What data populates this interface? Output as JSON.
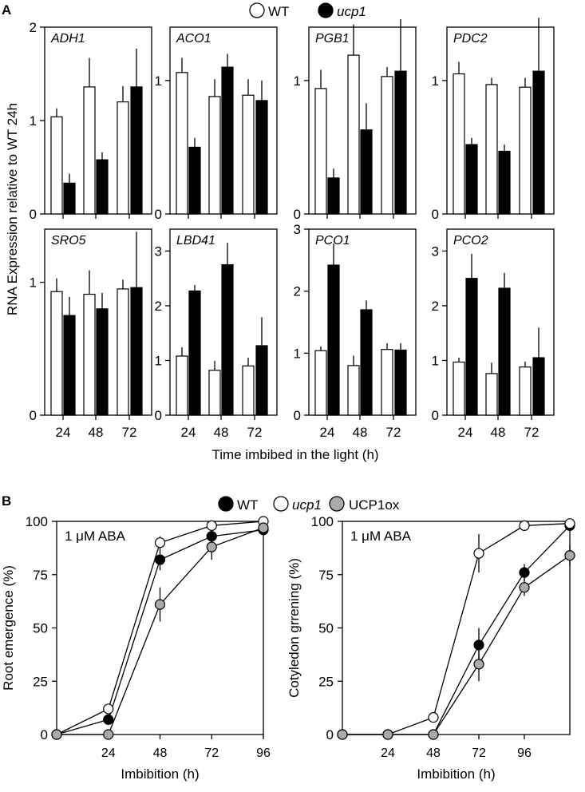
{
  "panel_labels": {
    "a": "A",
    "b": "B"
  },
  "legend_a": {
    "wt": "WT",
    "ucp1": "ucp1"
  },
  "legend_b": {
    "wt": "WT",
    "ucp1": "ucp1",
    "ucp1ox": "UCP1ox"
  },
  "shared_labels": {
    "a_ylabel": "RNA Expression relative to WT 24h",
    "a_xlabel": "Time imbibed in the light (h)",
    "a_xticks": [
      "24",
      "48",
      "72"
    ]
  },
  "colors": {
    "wt_bar": "#ffffff",
    "ucp1_bar": "#000000",
    "ucp1ox_point": "#aaaaaa"
  },
  "chart_data": [
    {
      "type": "bar",
      "gene": "ADH1",
      "categories": [
        "24",
        "48",
        "72"
      ],
      "ylim": [
        0,
        2
      ],
      "yticks": [
        0,
        1,
        2
      ],
      "series": [
        {
          "name": "WT",
          "values": [
            1.04,
            1.36,
            1.2
          ],
          "errors": [
            0.09,
            0.31,
            0.17
          ]
        },
        {
          "name": "ucp1",
          "values": [
            0.33,
            0.58,
            1.36
          ],
          "errors": [
            0.1,
            0.08,
            0.41
          ]
        }
      ]
    },
    {
      "type": "bar",
      "gene": "ACO1",
      "categories": [
        "24",
        "48",
        "72"
      ],
      "ylim": [
        0,
        1.4
      ],
      "yticks": [
        0,
        1
      ],
      "series": [
        {
          "name": "WT",
          "values": [
            1.06,
            0.88,
            0.89
          ],
          "errors": [
            0.11,
            0.13,
            0.12
          ]
        },
        {
          "name": "ucp1",
          "values": [
            0.5,
            1.1,
            0.85
          ],
          "errors": [
            0.07,
            0.1,
            0.15
          ]
        }
      ]
    },
    {
      "type": "bar",
      "gene": "PGB1",
      "categories": [
        "24",
        "48",
        "72"
      ],
      "ylim": [
        0,
        1.4
      ],
      "yticks": [
        0,
        1
      ],
      "series": [
        {
          "name": "WT",
          "values": [
            0.94,
            1.19,
            1.03
          ],
          "errors": [
            0.14,
            0.23,
            0.07
          ]
        },
        {
          "name": "ucp1",
          "values": [
            0.27,
            0.63,
            1.07
          ],
          "errors": [
            0.07,
            0.2,
            0.39
          ]
        }
      ]
    },
    {
      "type": "bar",
      "gene": "PDC2",
      "categories": [
        "24",
        "48",
        "72"
      ],
      "ylim": [
        0,
        1.4
      ],
      "yticks": [
        0,
        1
      ],
      "series": [
        {
          "name": "WT",
          "values": [
            1.05,
            0.97,
            0.95
          ],
          "errors": [
            0.09,
            0.05,
            0.07
          ]
        },
        {
          "name": "ucp1",
          "values": [
            0.52,
            0.47,
            1.07
          ],
          "errors": [
            0.05,
            0.05,
            0.4
          ]
        }
      ]
    },
    {
      "type": "bar",
      "gene": "SRO5",
      "categories": [
        "24",
        "48",
        "72"
      ],
      "ylim": [
        0,
        1.4
      ],
      "yticks": [
        0,
        1
      ],
      "series": [
        {
          "name": "WT",
          "values": [
            0.93,
            0.91,
            0.95
          ],
          "errors": [
            0.1,
            0.18,
            0.07
          ]
        },
        {
          "name": "ucp1",
          "values": [
            0.75,
            0.8,
            0.96
          ],
          "errors": [
            0.14,
            0.12,
            0.42
          ]
        }
      ]
    },
    {
      "type": "bar",
      "gene": "LBD41",
      "categories": [
        "24",
        "48",
        "72"
      ],
      "ylim": [
        0,
        3.4
      ],
      "yticks": [
        0,
        1,
        2,
        3
      ],
      "series": [
        {
          "name": "WT",
          "values": [
            1.08,
            0.82,
            0.9
          ],
          "errors": [
            0.16,
            0.17,
            0.15
          ]
        },
        {
          "name": "ucp1",
          "values": [
            2.27,
            2.75,
            1.27
          ],
          "errors": [
            0.11,
            0.4,
            0.52
          ]
        }
      ]
    },
    {
      "type": "bar",
      "gene": "PCO1",
      "categories": [
        "24",
        "48",
        "72"
      ],
      "ylim": [
        0,
        3
      ],
      "yticks": [
        0,
        1,
        2,
        3
      ],
      "series": [
        {
          "name": "WT",
          "values": [
            1.04,
            0.8,
            1.06
          ],
          "errors": [
            0.07,
            0.16,
            0.1
          ]
        },
        {
          "name": "ucp1",
          "values": [
            2.42,
            1.7,
            1.05
          ],
          "errors": [
            0.35,
            0.15,
            0.11
          ]
        }
      ]
    },
    {
      "type": "bar",
      "gene": "PCO2",
      "categories": [
        "24",
        "48",
        "72"
      ],
      "ylim": [
        0,
        3.4
      ],
      "yticks": [
        0,
        1,
        2,
        3
      ],
      "series": [
        {
          "name": "WT",
          "values": [
            0.97,
            0.76,
            0.88
          ],
          "errors": [
            0.08,
            0.2,
            0.1
          ]
        },
        {
          "name": "ucp1",
          "values": [
            2.5,
            2.32,
            1.05
          ],
          "errors": [
            0.45,
            0.28,
            0.55
          ]
        }
      ]
    },
    {
      "type": "line",
      "annotation": "1 μM ABA",
      "xlabel": "Imbibition (h)",
      "ylabel": "Root emergence (%)",
      "xlim": [
        0,
        96
      ],
      "ylim": [
        0,
        100
      ],
      "xticks": [
        24,
        48,
        72,
        96
      ],
      "yticks": [
        0,
        25,
        50,
        75,
        100
      ],
      "series": [
        {
          "name": "WT",
          "x": [
            0,
            24,
            48,
            72,
            96
          ],
          "y": [
            0,
            7,
            82,
            93,
            96
          ],
          "errors": [
            0,
            0,
            5,
            3,
            2
          ]
        },
        {
          "name": "ucp1",
          "x": [
            0,
            24,
            48,
            72,
            96
          ],
          "y": [
            0,
            12,
            90,
            98,
            100
          ],
          "errors": [
            0,
            0,
            3,
            1,
            0
          ]
        },
        {
          "name": "UCP1ox",
          "x": [
            0,
            24,
            48,
            72,
            96
          ],
          "y": [
            0,
            0,
            61,
            88,
            97
          ],
          "errors": [
            0,
            0,
            8,
            6,
            2
          ]
        }
      ]
    },
    {
      "type": "line",
      "annotation": "1 μM ABA",
      "xlabel": "Imbibition (h)",
      "ylabel": "Cotyledon grrening (%)",
      "xlim": [
        0,
        120
      ],
      "ylim": [
        0,
        100
      ],
      "xticks": [
        24,
        48,
        72,
        96
      ],
      "yticks": [
        0,
        25,
        50,
        75,
        100
      ],
      "series": [
        {
          "name": "WT",
          "x": [
            0,
            24,
            48,
            72,
            96,
            120
          ],
          "y": [
            0,
            0,
            0,
            42,
            76,
            98
          ],
          "errors": [
            0,
            0,
            0,
            8,
            4,
            1
          ]
        },
        {
          "name": "ucp1",
          "x": [
            0,
            24,
            48,
            72,
            96,
            120
          ],
          "y": [
            0,
            0,
            8,
            85,
            98,
            99
          ],
          "errors": [
            0,
            0,
            1,
            9,
            1,
            0
          ]
        },
        {
          "name": "UCP1ox",
          "x": [
            0,
            24,
            48,
            72,
            96,
            120
          ],
          "y": [
            0,
            0,
            0,
            33,
            69,
            84
          ],
          "errors": [
            0,
            0,
            0,
            8,
            4,
            5
          ]
        }
      ]
    }
  ]
}
